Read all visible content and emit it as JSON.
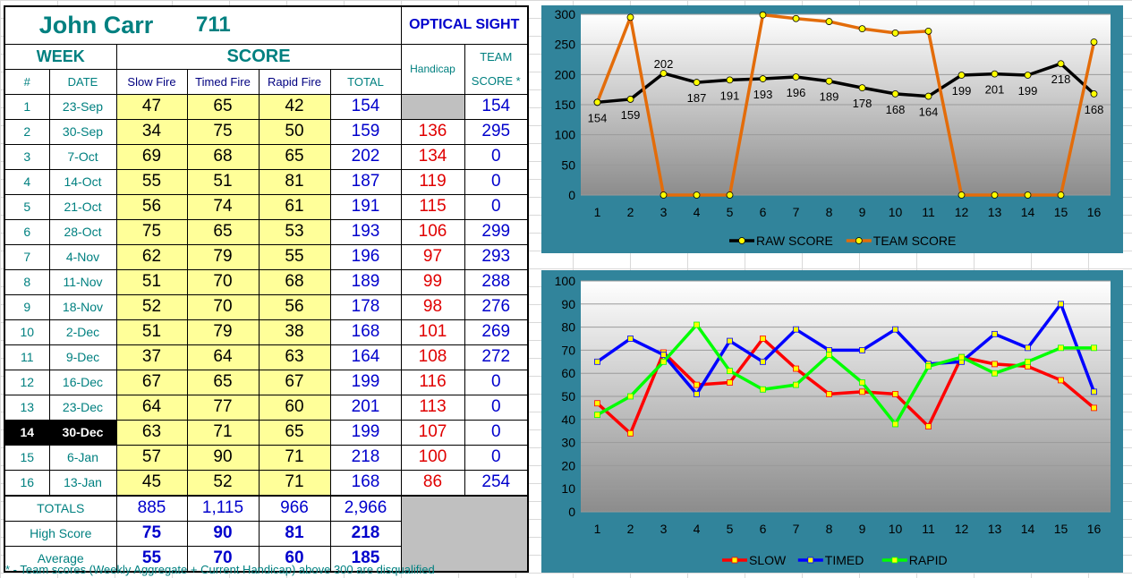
{
  "header": {
    "name": "John Carr",
    "aggregate": "711",
    "sight": "OPTICAL SIGHT"
  },
  "columns": {
    "week": "WEEK",
    "score": "SCORE",
    "num": "#",
    "date": "DATE",
    "slow": "Slow Fire",
    "timed": "Timed Fire",
    "rapid": "Rapid Fire",
    "total": "TOTAL",
    "handicap": "Handicap",
    "team_line1": "TEAM",
    "team_line2": "SCORE *"
  },
  "rows": [
    {
      "num": "1",
      "date": "23-Sep",
      "slow": "47",
      "timed": "65",
      "rapid": "42",
      "total": "154",
      "handicap": "",
      "team": "154"
    },
    {
      "num": "2",
      "date": "30-Sep",
      "slow": "34",
      "timed": "75",
      "rapid": "50",
      "total": "159",
      "handicap": "136",
      "team": "295"
    },
    {
      "num": "3",
      "date": "7-Oct",
      "slow": "69",
      "timed": "68",
      "rapid": "65",
      "total": "202",
      "handicap": "134",
      "team": "0"
    },
    {
      "num": "4",
      "date": "14-Oct",
      "slow": "55",
      "timed": "51",
      "rapid": "81",
      "total": "187",
      "handicap": "119",
      "team": "0"
    },
    {
      "num": "5",
      "date": "21-Oct",
      "slow": "56",
      "timed": "74",
      "rapid": "61",
      "total": "191",
      "handicap": "115",
      "team": "0"
    },
    {
      "num": "6",
      "date": "28-Oct",
      "slow": "75",
      "timed": "65",
      "rapid": "53",
      "total": "193",
      "handicap": "106",
      "team": "299"
    },
    {
      "num": "7",
      "date": "4-Nov",
      "slow": "62",
      "timed": "79",
      "rapid": "55",
      "total": "196",
      "handicap": "97",
      "team": "293"
    },
    {
      "num": "8",
      "date": "11-Nov",
      "slow": "51",
      "timed": "70",
      "rapid": "68",
      "total": "189",
      "handicap": "99",
      "team": "288"
    },
    {
      "num": "9",
      "date": "18-Nov",
      "slow": "52",
      "timed": "70",
      "rapid": "56",
      "total": "178",
      "handicap": "98",
      "team": "276"
    },
    {
      "num": "10",
      "date": "2-Dec",
      "slow": "51",
      "timed": "79",
      "rapid": "38",
      "total": "168",
      "handicap": "101",
      "team": "269"
    },
    {
      "num": "11",
      "date": "9-Dec",
      "slow": "37",
      "timed": "64",
      "rapid": "63",
      "total": "164",
      "handicap": "108",
      "team": "272"
    },
    {
      "num": "12",
      "date": "16-Dec",
      "slow": "67",
      "timed": "65",
      "rapid": "67",
      "total": "199",
      "handicap": "116",
      "team": "0"
    },
    {
      "num": "13",
      "date": "23-Dec",
      "slow": "64",
      "timed": "77",
      "rapid": "60",
      "total": "201",
      "handicap": "113",
      "team": "0"
    },
    {
      "num": "14",
      "date": "30-Dec",
      "slow": "63",
      "timed": "71",
      "rapid": "65",
      "total": "199",
      "handicap": "107",
      "team": "0"
    },
    {
      "num": "15",
      "date": "6-Jan",
      "slow": "57",
      "timed": "90",
      "rapid": "71",
      "total": "218",
      "handicap": "100",
      "team": "0"
    },
    {
      "num": "16",
      "date": "13-Jan",
      "slow": "45",
      "timed": "52",
      "rapid": "71",
      "total": "168",
      "handicap": "86",
      "team": "254"
    }
  ],
  "summary": [
    {
      "label": "TOTALS",
      "slow": "885",
      "timed": "1,115",
      "rapid": "966",
      "total": "2,966"
    },
    {
      "label": "High Score",
      "slow": "75",
      "timed": "90",
      "rapid": "81",
      "total": "218"
    },
    {
      "label": "Average",
      "slow": "55",
      "timed": "70",
      "rapid": "60",
      "total": "185"
    }
  ],
  "footnote": "* - Team scores (Weekly Aggregate + Current Handicap) above 300 are disqualified",
  "colors": {
    "teal_frame": "#31849b",
    "raw": "#000000",
    "team": "#e36c0a",
    "slow": "#ff0000",
    "timed": "#0000ff",
    "rapid": "#00ff00",
    "marker": "#ffff00"
  },
  "chart_data": [
    {
      "type": "line",
      "x": [
        1,
        2,
        3,
        4,
        5,
        6,
        7,
        8,
        9,
        10,
        11,
        12,
        13,
        14,
        15,
        16
      ],
      "ylim": [
        0,
        300
      ],
      "yticks": [
        0,
        50,
        100,
        150,
        200,
        250,
        300
      ],
      "series": [
        {
          "name": "RAW SCORE",
          "values": [
            154,
            159,
            202,
            187,
            191,
            193,
            196,
            189,
            178,
            168,
            164,
            199,
            201,
            199,
            218,
            168
          ]
        },
        {
          "name": "TEAM SCORE",
          "values": [
            154,
            295,
            0,
            0,
            0,
            299,
            293,
            288,
            276,
            269,
            272,
            0,
            0,
            0,
            0,
            254
          ]
        }
      ],
      "data_labels_series": "RAW SCORE",
      "legend": "bottom"
    },
    {
      "type": "line",
      "x": [
        1,
        2,
        3,
        4,
        5,
        6,
        7,
        8,
        9,
        10,
        11,
        12,
        13,
        14,
        15,
        16
      ],
      "ylim": [
        0,
        100
      ],
      "yticks": [
        0,
        10,
        20,
        30,
        40,
        50,
        60,
        70,
        80,
        90,
        100
      ],
      "series": [
        {
          "name": "SLOW",
          "values": [
            47,
            34,
            69,
            55,
            56,
            75,
            62,
            51,
            52,
            51,
            37,
            67,
            64,
            63,
            57,
            45
          ]
        },
        {
          "name": "TIMED",
          "values": [
            65,
            75,
            68,
            51,
            74,
            65,
            79,
            70,
            70,
            79,
            64,
            65,
            77,
            71,
            90,
            52
          ]
        },
        {
          "name": "RAPID",
          "values": [
            42,
            50,
            65,
            81,
            61,
            53,
            55,
            68,
            56,
            38,
            63,
            67,
            60,
            65,
            71,
            71
          ]
        }
      ],
      "legend": "bottom"
    }
  ]
}
